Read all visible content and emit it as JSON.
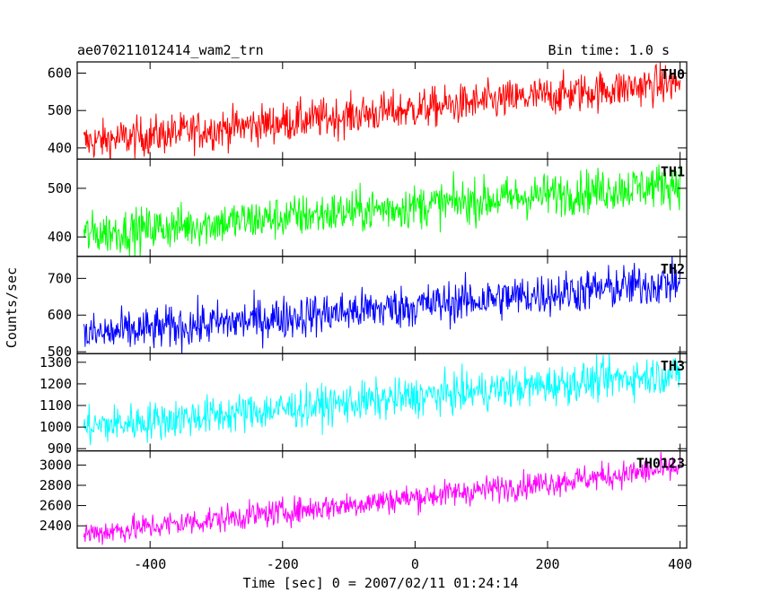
{
  "chart_data": {
    "type": "line",
    "title": "ae070211012414_wam2_trn",
    "bin_label": "Bin time: 1.0 s",
    "xlabel": "Time [sec] 0 = 2007/02/11 01:24:14",
    "ylabel": "Counts/sec",
    "xlim": [
      -510,
      410
    ],
    "x_ticks": [
      -400,
      -200,
      0,
      200,
      400
    ],
    "grid": false,
    "panels": [
      {
        "name": "TH0",
        "color": "#ff0000",
        "ylim": [
          370,
          630
        ],
        "yticks": [
          400,
          500,
          600
        ],
        "trend_start": 415,
        "trend_end": 575,
        "noise_amplitude": 38
      },
      {
        "name": "TH1",
        "color": "#00ff00",
        "ylim": [
          360,
          560
        ],
        "yticks": [
          400,
          500
        ],
        "trend_start": 405,
        "trend_end": 510,
        "noise_amplitude": 32
      },
      {
        "name": "TH2",
        "color": "#0000ff",
        "ylim": [
          495,
          760
        ],
        "yticks": [
          500,
          600,
          700
        ],
        "trend_start": 545,
        "trend_end": 690,
        "noise_amplitude": 42
      },
      {
        "name": "TH3",
        "color": "#00ffff",
        "ylim": [
          890,
          1340
        ],
        "yticks": [
          900,
          1000,
          1100,
          1200,
          1300
        ],
        "trend_start": 1000,
        "trend_end": 1250,
        "noise_amplitude": 65
      },
      {
        "name": "TH0123",
        "color": "#ff00ff",
        "ylim": [
          2180,
          3140
        ],
        "yticks": [
          2400,
          2600,
          2800,
          3000
        ],
        "trend_start": 2320,
        "trend_end": 2970,
        "noise_amplitude": 95
      }
    ]
  }
}
